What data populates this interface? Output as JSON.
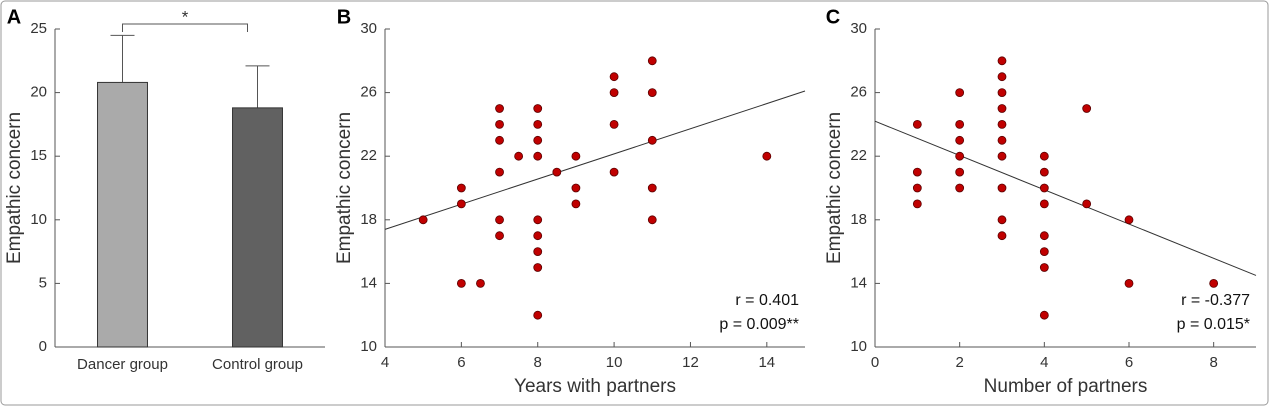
{
  "chart_data": [
    {
      "type": "bar",
      "panel_label": "A",
      "ylabel": "Empathic concern",
      "categories": [
        "Dancer group",
        "Control group"
      ],
      "values": [
        20.8,
        18.8
      ],
      "errors": [
        3.7,
        3.3
      ],
      "colors": [
        "#aaaaaa",
        "#616161"
      ],
      "ylim": [
        0,
        25
      ],
      "yticks": [
        0,
        5,
        10,
        15,
        20,
        25
      ],
      "annotation": "*"
    },
    {
      "type": "scatter",
      "panel_label": "B",
      "xlabel": "Years with partners",
      "ylabel": "Empathic concern",
      "x": [
        5,
        6,
        6,
        6,
        6.5,
        7,
        7,
        7,
        7,
        7,
        7,
        7.5,
        8,
        8,
        8,
        8,
        8,
        8,
        8,
        8,
        8,
        8.5,
        9,
        9,
        9,
        10,
        10,
        10,
        10,
        11,
        11,
        11,
        11,
        11,
        14
      ],
      "y": [
        18,
        20,
        19,
        14,
        14,
        25,
        24,
        23,
        21,
        18,
        17,
        22,
        25,
        24,
        23,
        22,
        18,
        17,
        16,
        15,
        12,
        21,
        22,
        20,
        19,
        27,
        26,
        24,
        21,
        28,
        26,
        23,
        20,
        18,
        22
      ],
      "color": "#c00000",
      "xlim": [
        4,
        15
      ],
      "ylim": [
        10,
        30
      ],
      "xticks": [
        4,
        6,
        8,
        10,
        12,
        14
      ],
      "yticks": [
        10,
        14,
        18,
        22,
        26,
        30
      ],
      "fit": {
        "x": [
          4,
          15
        ],
        "y": [
          17.4,
          26.1
        ]
      },
      "annotations": [
        "r = 0.401",
        "p = 0.009**"
      ]
    },
    {
      "type": "scatter",
      "panel_label": "C",
      "xlabel": "Number of partners",
      "ylabel": "Empathic concern",
      "x": [
        1,
        1,
        1,
        1,
        2,
        2,
        2,
        2,
        2,
        2,
        3,
        3,
        3,
        3,
        3,
        3,
        3,
        3,
        3,
        3,
        4,
        4,
        4,
        4,
        4,
        4,
        4,
        4,
        5,
        5,
        6,
        6,
        8
      ],
      "y": [
        24,
        21,
        20,
        19,
        26,
        24,
        23,
        22,
        21,
        20,
        28,
        27,
        26,
        25,
        24,
        23,
        22,
        20,
        18,
        17,
        22,
        21,
        20,
        19,
        17,
        16,
        15,
        12,
        25,
        19,
        18,
        14,
        14
      ],
      "color": "#c00000",
      "xlim": [
        0,
        9
      ],
      "ylim": [
        10,
        30
      ],
      "xticks": [
        0,
        2,
        4,
        6,
        8
      ],
      "yticks": [
        10,
        14,
        18,
        22,
        26,
        30
      ],
      "fit": {
        "x": [
          0,
          9
        ],
        "y": [
          24.2,
          14.5
        ]
      },
      "annotations": [
        "r = -0.377",
        "p = 0.015*"
      ]
    }
  ]
}
